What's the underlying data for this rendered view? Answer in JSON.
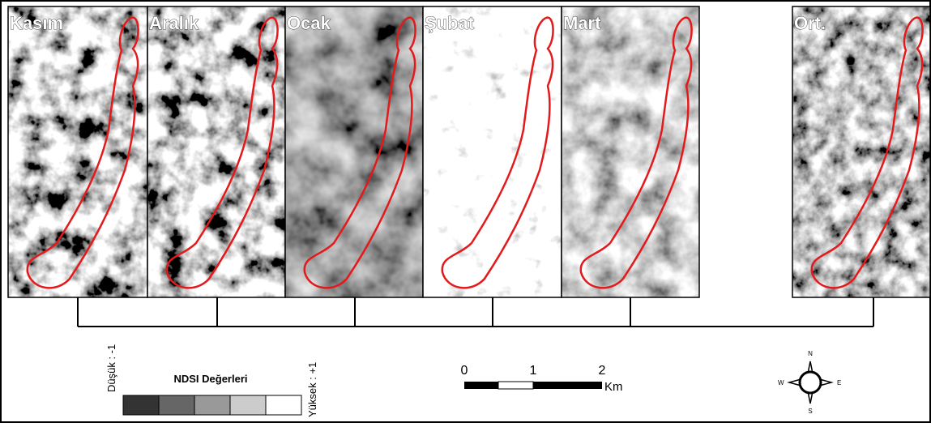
{
  "panels": [
    {
      "label": "Kasım"
    },
    {
      "label": "Aralık"
    },
    {
      "label": "Ocak"
    },
    {
      "label": "Şubat"
    },
    {
      "label": "Mart"
    },
    {
      "label": "Ort."
    }
  ],
  "legend": {
    "low": "Düşük : -1",
    "title": "NDSI Değerleri",
    "high": "Yüksek : +1"
  },
  "scale_bar": {
    "labels": [
      "0",
      "1",
      "2"
    ],
    "unit": "Km"
  },
  "compass": {
    "n": "N",
    "e": "E",
    "s": "S",
    "w": "W"
  }
}
